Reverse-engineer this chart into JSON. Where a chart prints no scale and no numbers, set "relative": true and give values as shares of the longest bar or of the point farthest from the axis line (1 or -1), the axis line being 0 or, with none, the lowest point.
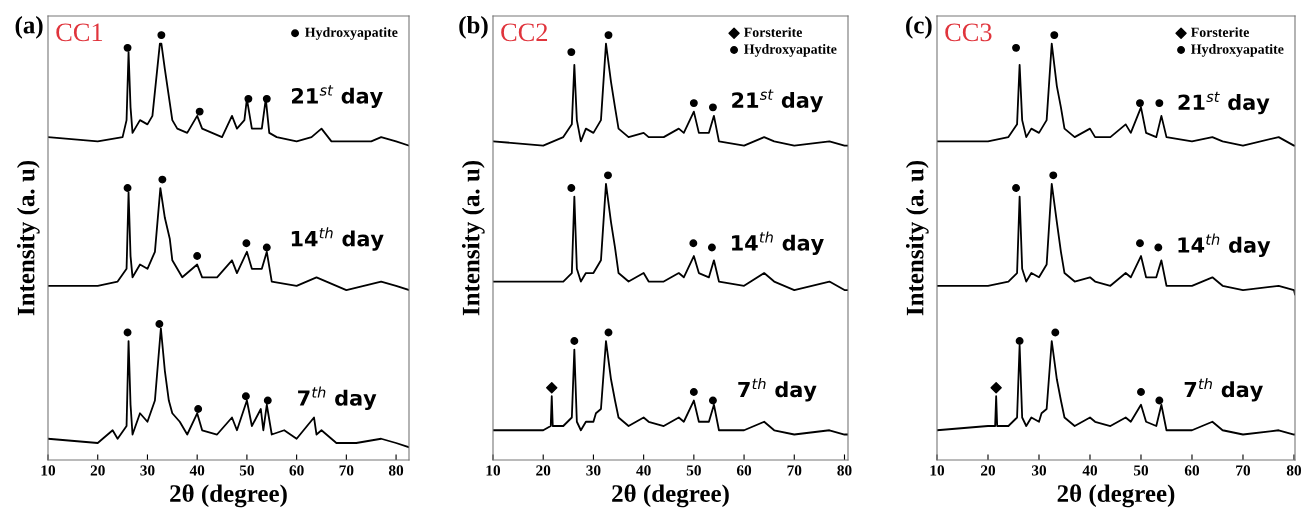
{
  "chart_data": [
    {
      "type": "line",
      "title": "CC1",
      "annotations": [
        "(a)"
      ],
      "xlabel": "2θ (degree)",
      "ylabel": "Intensity (a. u)",
      "relative": true,
      "xlim": [
        10,
        82.6
      ],
      "xticks": [
        10,
        20,
        30,
        40,
        50,
        60,
        70,
        80
      ],
      "tick_labels": "x",
      "legend": "top right",
      "grid": false,
      "series": [
        {
          "name": "21$^{st}$ day",
          "color": "#000000",
          "x": [
            10,
            20,
            25,
            25.8,
            26.2,
            26.6,
            27,
            28.5,
            30,
            31,
            32.5,
            32.8,
            33.5,
            34.5,
            35,
            36,
            38,
            40,
            41,
            43,
            45,
            47,
            48,
            49.5,
            50,
            51,
            53,
            53.8,
            54.5,
            56,
            60,
            63,
            65,
            67,
            70,
            75,
            77,
            80,
            82.6
          ],
          "values": [
            0.76,
            0.75,
            0.76,
            0.8,
            0.96,
            0.83,
            0.77,
            0.8,
            0.79,
            0.81,
            0.98,
            0.98,
            0.92,
            0.84,
            0.8,
            0.78,
            0.77,
            0.81,
            0.78,
            0.77,
            0.76,
            0.81,
            0.78,
            0.8,
            0.85,
            0.78,
            0.78,
            0.85,
            0.77,
            0.76,
            0.75,
            0.76,
            0.78,
            0.75,
            0.75,
            0.75,
            0.76,
            0.75,
            0.74
          ]
        },
        {
          "name": "14$^{th}$ day",
          "color": "#000000",
          "x": [
            10,
            20,
            24,
            25.8,
            26.2,
            26.6,
            27,
            28.5,
            30,
            31.5,
            32.6,
            33.5,
            34.5,
            35,
            37,
            40,
            41,
            44,
            47,
            48,
            50,
            51,
            53,
            54,
            55,
            60,
            64,
            66,
            70,
            77,
            80,
            82.6
          ],
          "values": [
            0.41,
            0.41,
            0.42,
            0.45,
            0.63,
            0.48,
            0.43,
            0.46,
            0.45,
            0.49,
            0.64,
            0.57,
            0.52,
            0.47,
            0.43,
            0.46,
            0.43,
            0.43,
            0.47,
            0.44,
            0.49,
            0.45,
            0.45,
            0.49,
            0.42,
            0.41,
            0.43,
            0.42,
            0.4,
            0.42,
            0.41,
            0.4
          ]
        },
        {
          "name": "7$^{th}$ day",
          "color": "#000000",
          "x": [
            10,
            20,
            23,
            24,
            25.8,
            26.2,
            26.6,
            27,
            28.5,
            30,
            31.5,
            32.7,
            33.5,
            34.3,
            35,
            36.5,
            38,
            40,
            41,
            44,
            47,
            48,
            50,
            51,
            52.8,
            53.3,
            54,
            55,
            57.5,
            60,
            63.5,
            64,
            65,
            68,
            72,
            77,
            80,
            82.6
          ],
          "values": [
            0.05,
            0.04,
            0.07,
            0.05,
            0.08,
            0.28,
            0.13,
            0.06,
            0.11,
            0.09,
            0.14,
            0.31,
            0.21,
            0.14,
            0.11,
            0.09,
            0.06,
            0.11,
            0.07,
            0.06,
            0.1,
            0.07,
            0.14,
            0.08,
            0.12,
            0.07,
            0.13,
            0.06,
            0.07,
            0.05,
            0.1,
            0.06,
            0.07,
            0.04,
            0.04,
            0.05,
            0.04,
            0.03
          ]
        },
        {
          "name": "Hydroxyapatite",
          "type": "scatter",
          "marker": "circle",
          "color": "#000000",
          "x": [
            26,
            32.8,
            40.5,
            50.3,
            54,
            26,
            33,
            40,
            49.9,
            54,
            26,
            32.4,
            40.2,
            49.8,
            54.2
          ],
          "values": [
            0.97,
            1.0,
            0.82,
            0.85,
            0.85,
            0.64,
            0.66,
            0.48,
            0.51,
            0.5,
            0.3,
            0.32,
            0.12,
            0.15,
            0.14
          ]
        }
      ]
    },
    {
      "type": "line",
      "title": "CC2",
      "annotations": [
        "(b)"
      ],
      "xlabel": "2θ (degree)",
      "ylabel": "Intensity (a. u)",
      "relative": true,
      "xlim": [
        10,
        80.7
      ],
      "xticks": [
        10,
        20,
        30,
        40,
        50,
        60,
        70,
        80
      ],
      "tick_labels": "x",
      "legend": "top right",
      "grid": false,
      "series": [
        {
          "name": "21$^{st}$ day",
          "color": "#000000",
          "x": [
            10,
            20,
            24,
            25.7,
            26.2,
            26.7,
            27.5,
            28.5,
            30,
            31.5,
            32.5,
            33.5,
            34.3,
            35,
            37,
            40,
            41,
            44,
            47,
            48,
            50,
            51,
            53,
            54,
            55,
            60,
            64,
            66,
            70,
            77,
            80,
            80.7
          ],
          "values": [
            0.75,
            0.74,
            0.76,
            0.79,
            0.93,
            0.8,
            0.75,
            0.78,
            0.77,
            0.8,
            0.98,
            0.89,
            0.83,
            0.78,
            0.76,
            0.77,
            0.76,
            0.76,
            0.78,
            0.77,
            0.82,
            0.77,
            0.77,
            0.81,
            0.75,
            0.74,
            0.76,
            0.75,
            0.74,
            0.75,
            0.74,
            0.74
          ]
        },
        {
          "name": "14$^{th}$ day",
          "color": "#000000",
          "x": [
            10,
            20,
            24,
            25.7,
            26.2,
            26.7,
            27.5,
            28.5,
            30,
            31.5,
            32.5,
            33.5,
            34.3,
            35,
            37,
            40,
            41,
            44,
            47,
            48,
            50,
            51,
            53,
            54,
            55,
            60,
            64,
            66,
            70,
            77,
            80,
            80.7
          ],
          "values": [
            0.42,
            0.42,
            0.42,
            0.44,
            0.62,
            0.45,
            0.42,
            0.44,
            0.44,
            0.47,
            0.65,
            0.56,
            0.5,
            0.44,
            0.42,
            0.44,
            0.42,
            0.42,
            0.44,
            0.43,
            0.48,
            0.44,
            0.43,
            0.47,
            0.42,
            0.41,
            0.44,
            0.42,
            0.4,
            0.42,
            0.4,
            0.4
          ]
        },
        {
          "name": "7$^{th}$ day",
          "color": "#000000",
          "x": [
            10,
            20,
            21.5,
            21.7,
            21.9,
            24,
            25.7,
            26.2,
            26.7,
            27.5,
            28.5,
            30,
            30.5,
            31.5,
            32.5,
            33.5,
            34.3,
            35,
            37,
            40,
            41,
            44,
            47,
            48,
            50,
            51,
            53,
            54,
            55,
            60,
            64,
            66,
            70,
            77,
            80,
            80.7
          ],
          "values": [
            0.07,
            0.07,
            0.08,
            0.15,
            0.08,
            0.08,
            0.1,
            0.26,
            0.09,
            0.07,
            0.09,
            0.09,
            0.11,
            0.12,
            0.28,
            0.19,
            0.14,
            0.1,
            0.08,
            0.1,
            0.09,
            0.08,
            0.1,
            0.09,
            0.14,
            0.09,
            0.09,
            0.13,
            0.07,
            0.07,
            0.09,
            0.07,
            0.06,
            0.07,
            0.06,
            0.06
          ]
        },
        {
          "name": "Forsterite",
          "type": "scatter",
          "marker": "diamond",
          "color": "#000000",
          "x": [
            21.7
          ],
          "values": [
            0.17
          ]
        },
        {
          "name": "Hydroxyapatite",
          "type": "scatter",
          "marker": "circle",
          "color": "#000000",
          "x": [
            25.6,
            33,
            50,
            53.8,
            25.6,
            32.9,
            49.9,
            53.6,
            26.2,
            33,
            50,
            53.8
          ],
          "values": [
            0.96,
            1.0,
            0.84,
            0.83,
            0.64,
            0.67,
            0.51,
            0.5,
            0.28,
            0.3,
            0.16,
            0.14
          ]
        }
      ]
    },
    {
      "type": "line",
      "title": "CC3",
      "annotations": [
        "(c)"
      ],
      "xlabel": "2θ (degree)",
      "ylabel": "Intensity (a. u)",
      "relative": true,
      "xlim": [
        10,
        80.2
      ],
      "xticks": [
        10,
        20,
        30,
        40,
        50,
        60,
        70,
        80
      ],
      "tick_labels": "x",
      "legend": "top right",
      "grid": false,
      "series": [
        {
          "name": "21$^{st}$ day",
          "color": "#000000",
          "x": [
            10,
            20,
            24,
            25.7,
            26.2,
            26.7,
            27.5,
            28.5,
            30,
            31.5,
            32.5,
            33.5,
            34.3,
            35,
            37,
            40,
            41,
            44,
            47,
            48,
            50,
            51,
            53,
            54,
            55,
            60,
            64,
            66,
            70,
            77,
            80,
            80.2
          ],
          "values": [
            0.75,
            0.75,
            0.76,
            0.79,
            0.93,
            0.8,
            0.76,
            0.78,
            0.77,
            0.8,
            0.98,
            0.88,
            0.83,
            0.78,
            0.76,
            0.78,
            0.76,
            0.76,
            0.79,
            0.77,
            0.83,
            0.77,
            0.76,
            0.81,
            0.76,
            0.75,
            0.76,
            0.75,
            0.74,
            0.76,
            0.74,
            0.74
          ]
        },
        {
          "name": "14$^{th}$ day",
          "color": "#000000",
          "x": [
            10,
            20,
            24,
            25.7,
            26.2,
            26.7,
            27.5,
            28.5,
            30,
            31.5,
            32.5,
            33.5,
            34.3,
            35,
            37,
            40,
            41,
            44,
            47,
            48,
            50,
            51,
            53,
            54,
            55,
            60,
            64,
            66,
            70,
            77,
            80,
            80.2
          ],
          "values": [
            0.41,
            0.41,
            0.42,
            0.44,
            0.62,
            0.45,
            0.42,
            0.44,
            0.43,
            0.46,
            0.65,
            0.56,
            0.49,
            0.44,
            0.42,
            0.43,
            0.42,
            0.41,
            0.44,
            0.43,
            0.48,
            0.43,
            0.43,
            0.47,
            0.41,
            0.41,
            0.43,
            0.41,
            0.4,
            0.41,
            0.4,
            0.39
          ]
        },
        {
          "name": "7$^{th}$ day",
          "color": "#000000",
          "x": [
            10,
            20,
            21.4,
            21.6,
            21.8,
            24,
            25.7,
            26.2,
            26.7,
            27.5,
            28.5,
            30,
            30.5,
            31.5,
            32.5,
            33.5,
            34.3,
            35,
            37,
            40,
            41,
            44,
            47,
            48,
            50,
            51,
            53,
            54,
            55,
            60,
            64,
            66,
            70,
            77,
            80,
            80.2
          ],
          "values": [
            0.07,
            0.08,
            0.08,
            0.15,
            0.08,
            0.08,
            0.1,
            0.27,
            0.1,
            0.08,
            0.1,
            0.09,
            0.11,
            0.12,
            0.28,
            0.19,
            0.14,
            0.1,
            0.08,
            0.1,
            0.09,
            0.08,
            0.1,
            0.09,
            0.13,
            0.09,
            0.08,
            0.13,
            0.07,
            0.07,
            0.09,
            0.07,
            0.06,
            0.07,
            0.06,
            0.06
          ]
        },
        {
          "name": "Forsterite",
          "type": "scatter",
          "marker": "diamond",
          "color": "#000000",
          "x": [
            21.6
          ],
          "values": [
            0.17
          ]
        },
        {
          "name": "Hydroxyapatite",
          "type": "scatter",
          "marker": "circle",
          "color": "#000000",
          "x": [
            25.5,
            33,
            49.8,
            53.6,
            25.5,
            32.8,
            49.8,
            53.4,
            26.2,
            33.2,
            50,
            53.6
          ],
          "values": [
            0.97,
            1.0,
            0.84,
            0.84,
            0.64,
            0.67,
            0.51,
            0.5,
            0.28,
            0.3,
            0.16,
            0.14
          ]
        }
      ]
    }
  ]
}
